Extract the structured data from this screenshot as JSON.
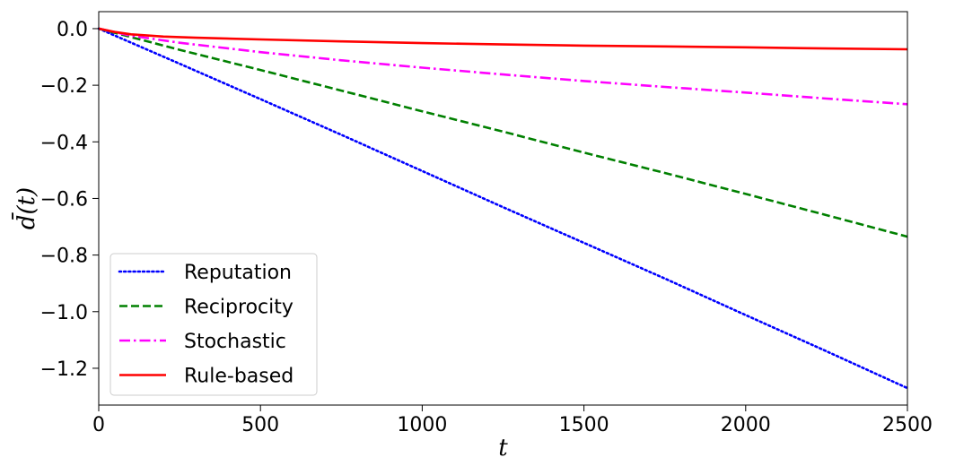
{
  "chart_data": {
    "type": "line",
    "title": "",
    "xlabel": "t",
    "ylabel": "d̄(t)",
    "xlim": [
      0,
      2500
    ],
    "ylim": [
      -1.33,
      0.06
    ],
    "xticks": [
      0,
      500,
      1000,
      1500,
      2000,
      2500
    ],
    "xtick_labels": [
      "0",
      "500",
      "1000",
      "1500",
      "2000",
      "2500"
    ],
    "yticks": [
      0.0,
      -0.2,
      -0.4,
      -0.6,
      -0.8,
      -1.0,
      -1.2
    ],
    "ytick_labels": [
      "0.0",
      "−0.2",
      "−0.4",
      "−0.6",
      "−0.8",
      "−1.0",
      "−1.2"
    ],
    "grid": false,
    "legend_position": "bottom-left",
    "series": [
      {
        "name": "Reputation",
        "color": "#0000ff",
        "style": "dotted",
        "x": [
          0,
          250,
          500,
          750,
          1000,
          1250,
          1500,
          1750,
          2000,
          2250,
          2500
        ],
        "y": [
          0.0,
          -0.124,
          -0.249,
          -0.375,
          -0.503,
          -0.631,
          -0.757,
          -0.883,
          -1.012,
          -1.14,
          -1.27
        ]
      },
      {
        "name": "Reciprocity",
        "color": "#008000",
        "style": "dashed",
        "x": [
          0,
          250,
          500,
          750,
          1000,
          1250,
          1500,
          1750,
          2000,
          2250,
          2500
        ],
        "y": [
          0.0,
          -0.075,
          -0.146,
          -0.219,
          -0.292,
          -0.364,
          -0.438,
          -0.51,
          -0.584,
          -0.659,
          -0.735
        ]
      },
      {
        "name": "Stochastic",
        "color": "#ff00ff",
        "style": "dashdot",
        "x": [
          0,
          100,
          250,
          500,
          750,
          1000,
          1250,
          1500,
          1750,
          2000,
          2250,
          2500
        ],
        "y": [
          0.0,
          -0.025,
          -0.05,
          -0.083,
          -0.112,
          -0.138,
          -0.162,
          -0.185,
          -0.206,
          -0.226,
          -0.247,
          -0.267
        ]
      },
      {
        "name": "Rule-based",
        "color": "#ff0000",
        "style": "solid",
        "x": [
          0,
          50,
          100,
          200,
          300,
          500,
          750,
          1000,
          1250,
          1500,
          1750,
          2000,
          2250,
          2500
        ],
        "y": [
          0.0,
          -0.012,
          -0.02,
          -0.028,
          -0.032,
          -0.038,
          -0.045,
          -0.051,
          -0.056,
          -0.06,
          -0.063,
          -0.066,
          -0.07,
          -0.073
        ]
      }
    ]
  }
}
